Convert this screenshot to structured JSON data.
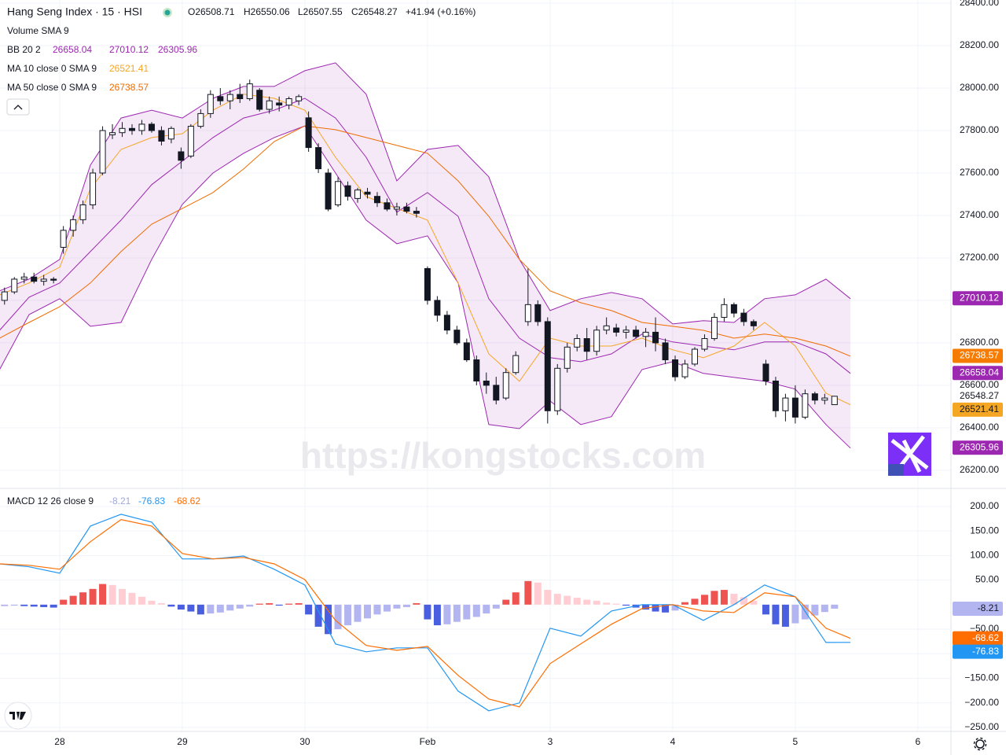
{
  "watermark": "https://kongstocks.com",
  "chart_data": [
    {
      "type": "candlestick",
      "title": "Hang Seng Index · 15 · HSI",
      "quote": [
        "O26508.71",
        "H26550.06",
        "L26507.55",
        "C26548.27",
        "+41.94 (+0.16%)"
      ],
      "legend": [
        {
          "name": "Volume SMA 9"
        },
        {
          "name": "BB 20 2",
          "values": [
            26658.04,
            27010.12,
            26305.96
          ],
          "colors": [
            "#9c27b0",
            "#9c27b0",
            "#9c27b0"
          ]
        },
        {
          "name": "MA 10 close 0 SMA 9",
          "values": [
            26521.41
          ],
          "colors": [
            "#f5a623"
          ]
        },
        {
          "name": "MA 50 close 0 SMA 9",
          "values": [
            26738.57
          ],
          "colors": [
            "#ef6c00"
          ]
        }
      ],
      "xlim": [
        -0.487,
        7.27
      ],
      "xticks": [
        {
          "value": 0,
          "label": "28"
        },
        {
          "value": 1,
          "label": "29"
        },
        {
          "value": 2,
          "label": "30"
        },
        {
          "value": 3,
          "label": "Feb"
        },
        {
          "value": 4,
          "label": "3"
        },
        {
          "value": 5,
          "label": "4"
        },
        {
          "value": 6,
          "label": "5"
        },
        {
          "value": 7,
          "label": "6"
        }
      ],
      "ylim": [
        26118,
        28415
      ],
      "yticks": [
        {
          "value": 26200,
          "label": "26200.00"
        },
        {
          "value": 26400,
          "label": "26400.00"
        },
        {
          "value": 26600,
          "label": "26600.00"
        },
        {
          "value": 26800,
          "label": "26800.00"
        },
        {
          "value": 27000,
          "label": "27000.00"
        },
        {
          "value": 27200,
          "label": "27200.00"
        },
        {
          "value": 27400,
          "label": "27400.00"
        },
        {
          "value": 27600,
          "label": "27600.00"
        },
        {
          "value": 27800,
          "label": "27800.00"
        },
        {
          "value": 28000,
          "label": "28000.00"
        },
        {
          "value": 28200,
          "label": "28200.00"
        },
        {
          "value": 28400,
          "label": "28400.00"
        }
      ],
      "grid": true,
      "up_color": "#ffffff",
      "down_color": "#131722",
      "edge_color": "#131722",
      "x": [
        -0.45,
        -0.37,
        -0.29,
        -0.21,
        -0.13,
        -0.05,
        0.03,
        0.11,
        0.19,
        0.27,
        0.35,
        0.43,
        0.51,
        0.59,
        0.67,
        0.75,
        0.83,
        0.91,
        0.99,
        1.07,
        1.15,
        1.23,
        1.31,
        1.39,
        1.47,
        1.55,
        1.63,
        1.71,
        1.79,
        1.87,
        1.95,
        2.03,
        2.11,
        2.19,
        2.27,
        2.35,
        2.43,
        2.51,
        2.59,
        2.67,
        2.75,
        2.83,
        2.91,
        3.0,
        3.08,
        3.16,
        3.24,
        3.32,
        3.4,
        3.48,
        3.56,
        3.64,
        3.72,
        3.82,
        3.9,
        3.98,
        4.06,
        4.14,
        4.22,
        4.3,
        4.38,
        4.46,
        4.54,
        4.62,
        4.7,
        4.78,
        4.86,
        4.94,
        5.02,
        5.1,
        5.18,
        5.26,
        5.34,
        5.42,
        5.5,
        5.58,
        5.66,
        5.76,
        5.84,
        5.92,
        6.0,
        6.08,
        6.16,
        6.24,
        6.32
      ],
      "open": [
        27000,
        27040,
        27100,
        27110,
        27090,
        27100,
        27250,
        27330,
        27380,
        27450,
        27600,
        27780,
        27790,
        27810,
        27800,
        27830,
        27800,
        27760,
        27700,
        27680,
        27820,
        27880,
        27960,
        27940,
        27970,
        27950,
        27990,
        27900,
        27930,
        27920,
        27940,
        27860,
        27720,
        27600,
        27450,
        27540,
        27480,
        27510,
        27490,
        27460,
        27430,
        27440,
        27420,
        27150,
        27000,
        26930,
        26860,
        26800,
        26720,
        26620,
        26600,
        26540,
        26660,
        26900,
        26980,
        26900,
        26480,
        26680,
        26780,
        26820,
        26760,
        26860,
        26870,
        26850,
        26860,
        26830,
        26850,
        26800,
        26720,
        26640,
        26700,
        26770,
        26820,
        26920,
        26980,
        26940,
        26900,
        26700,
        26620,
        26480,
        26540,
        26450,
        26560,
        26530,
        26508.71
      ],
      "high": [
        27060,
        27110,
        27130,
        27130,
        27120,
        27110,
        27350,
        27400,
        27470,
        27620,
        27820,
        27830,
        27840,
        27830,
        27850,
        27840,
        27820,
        27820,
        27720,
        27830,
        27900,
        27990,
        28000,
        27990,
        28020,
        28040,
        28000,
        27960,
        27960,
        27960,
        27970,
        27890,
        27740,
        27620,
        27580,
        27560,
        27530,
        27530,
        27510,
        27480,
        27460,
        27460,
        27440,
        27160,
        27020,
        26950,
        26880,
        26820,
        26740,
        26660,
        26640,
        26680,
        26760,
        27150,
        27000,
        26920,
        26700,
        26800,
        26840,
        26870,
        26880,
        26920,
        26890,
        26880,
        26880,
        26870,
        26920,
        26820,
        26740,
        26720,
        26780,
        26840,
        26940,
        27010,
        26990,
        26960,
        26910,
        26720,
        26640,
        26560,
        26600,
        26580,
        26570,
        26560,
        26550.06
      ],
      "low": [
        26980,
        27030,
        27080,
        27080,
        27070,
        27080,
        27220,
        27300,
        27360,
        27430,
        27590,
        27760,
        27770,
        27780,
        27780,
        27790,
        27730,
        27740,
        27620,
        27670,
        27810,
        27860,
        27920,
        27900,
        27930,
        27940,
        27890,
        27880,
        27890,
        27900,
        27920,
        27700,
        27600,
        27420,
        27440,
        27470,
        27460,
        27480,
        27440,
        27420,
        27400,
        27410,
        27390,
        26980,
        26900,
        26840,
        26790,
        26710,
        26600,
        26560,
        26510,
        26530,
        26650,
        26880,
        26880,
        26420,
        26460,
        26660,
        26760,
        26720,
        26740,
        26840,
        26830,
        26820,
        26820,
        26780,
        26760,
        26700,
        26620,
        26630,
        26690,
        26760,
        26810,
        26900,
        26920,
        26880,
        26860,
        26600,
        26450,
        26430,
        26420,
        26440,
        26510,
        26510,
        26507.55
      ],
      "close": [
        27040,
        27100,
        27110,
        27090,
        27100,
        27095,
        27330,
        27380,
        27450,
        27600,
        27800,
        27790,
        27810,
        27800,
        27830,
        27800,
        27750,
        27810,
        27660,
        27820,
        27880,
        27970,
        27940,
        27970,
        27950,
        28020,
        27900,
        27940,
        27920,
        27950,
        27960,
        27720,
        27620,
        27430,
        27560,
        27490,
        27520,
        27500,
        27460,
        27430,
        27440,
        27420,
        27410,
        27000,
        26930,
        26860,
        26800,
        26720,
        26620,
        26600,
        26530,
        26660,
        26740,
        26980,
        26900,
        26480,
        26680,
        26780,
        26820,
        26760,
        26860,
        26880,
        26850,
        26860,
        26830,
        26850,
        26800,
        26720,
        26640,
        26700,
        26770,
        26820,
        26920,
        26980,
        26940,
        26900,
        26880,
        26620,
        26480,
        26540,
        26450,
        26560,
        26530,
        26540,
        26548.27
      ],
      "line_x": [
        -0.49,
        -0.25,
        0,
        0.25,
        0.5,
        0.75,
        1,
        1.25,
        1.5,
        1.75,
        2,
        2.25,
        2.5,
        2.75,
        3,
        3.25,
        3.5,
        3.75,
        4,
        4.25,
        4.5,
        4.75,
        5,
        5.25,
        5.5,
        5.75,
        6,
        6.25,
        6.45
      ],
      "band_color": "#9c27b0",
      "lines": [
        {
          "color": "#9c27b0",
          "values": [
            27045,
            27100,
            27193,
            27637,
            27859,
            27896,
            27859,
            27952,
            28008,
            28008,
            28082,
            28119,
            27971,
            27563,
            27711,
            27730,
            27582,
            27193,
            26952,
            27008,
            27037,
            27008,
            26889,
            26904,
            26896,
            27008,
            27026,
            27100,
            27008
          ]
        },
        {
          "color": "#9c27b0",
          "values": [
            26859,
            27015,
            27082,
            27230,
            27378,
            27545,
            27656,
            27767,
            27859,
            27896,
            27952,
            27859,
            27674,
            27415,
            27508,
            27396,
            27008,
            26822,
            26730,
            26711,
            26748,
            26841,
            26804,
            26785,
            26767,
            26804,
            26804,
            26748,
            26656
          ]
        },
        {
          "color": "#9c27b0",
          "values": [
            26674,
            26933,
            27008,
            26878,
            26896,
            27193,
            27452,
            27600,
            27693,
            27767,
            27822,
            27600,
            27378,
            27267,
            27304,
            27082,
            26415,
            26396,
            26526,
            26415,
            26452,
            26674,
            26711,
            26656,
            26637,
            26619,
            26582,
            26415,
            26304
          ]
        },
        {
          "color": "#f5a623",
          "values": [
            27026,
            27082,
            27156,
            27526,
            27711,
            27767,
            27785,
            27896,
            27971,
            27952,
            27896,
            27674,
            27489,
            27433,
            27378,
            27082,
            26748,
            26619,
            26822,
            26785,
            26785,
            26822,
            26767,
            26730,
            26785,
            26896,
            26785,
            26563,
            26508
          ]
        },
        {
          "color": "#ef6c00",
          "values": [
            26822,
            26896,
            26970,
            27082,
            27230,
            27359,
            27433,
            27508,
            27619,
            27748,
            27822,
            27804,
            27767,
            27730,
            27693,
            27563,
            27396,
            27193,
            27045,
            26989,
            26952,
            26896,
            26878,
            26859,
            26822,
            26841,
            26822,
            26785,
            26737
          ]
        }
      ],
      "price_tags": [
        {
          "value": 27010.12,
          "color": "#9c27b0",
          "text_color": "#ffffff"
        },
        {
          "value": 26738.57,
          "color": "#f57c00",
          "text_color": "#ffffff"
        },
        {
          "value": 26658.04,
          "color": "#9c27b0",
          "text_color": "#ffffff"
        },
        {
          "value": 26548.27,
          "color": "#ffffff",
          "text_color": "#131722"
        },
        {
          "value": 26521.41,
          "color": "#f5a623",
          "text_color": "#131722"
        },
        {
          "value": 26305.96,
          "color": "#9c27b0",
          "text_color": "#ffffff"
        }
      ]
    },
    {
      "type": "macd",
      "name": "MACD 12 26 close 9",
      "legend_values": [
        -8.21,
        -76.83,
        -68.62
      ],
      "legend_colors": [
        "#9fa8da",
        "#2196f3",
        "#ff6d00"
      ],
      "ylim": [
        -258,
        235
      ],
      "yticks": [
        {
          "value": 200,
          "label": "200.00"
        },
        {
          "value": 150,
          "label": "150.00"
        },
        {
          "value": 100,
          "label": "100.00"
        },
        {
          "value": 50,
          "label": "50.00"
        },
        {
          "value": -50,
          "label": "−50.00"
        },
        {
          "value": -100,
          "label": "−100.00"
        },
        {
          "value": -150,
          "label": "−150.00"
        },
        {
          "value": -200,
          "label": "−200.00"
        },
        {
          "value": -250,
          "label": "−250.00"
        }
      ],
      "hist_colors": {
        "pos_rising": "#ef5350",
        "pos_falling": "#ffcdd2",
        "neg_falling": "#4a5fe0",
        "neg_rising": "#b2b5f0"
      },
      "histogram": [
        -3,
        -2,
        -3,
        -4,
        -5,
        -6,
        10,
        18,
        25,
        32,
        42,
        40,
        32,
        24,
        16,
        8,
        3,
        -4,
        -10,
        -14,
        -20,
        -18,
        -16,
        -12,
        -8,
        -4,
        2,
        3,
        -2,
        2,
        3,
        -20,
        -45,
        -60,
        -50,
        -42,
        -35,
        -28,
        -20,
        -14,
        -8,
        -5,
        3,
        -30,
        -42,
        -40,
        -35,
        -30,
        -25,
        -18,
        -8,
        10,
        25,
        48,
        45,
        30,
        22,
        18,
        14,
        10,
        8,
        4,
        2,
        -2,
        -6,
        -10,
        -14,
        -16,
        -12,
        5,
        12,
        20,
        28,
        30,
        22,
        15,
        8,
        -20,
        -40,
        -45,
        -38,
        -30,
        -22,
        -15,
        -8.21
      ],
      "lines": [
        {
          "color": "#2196f3",
          "values": [
            83,
            77,
            64,
            160,
            184,
            168,
            93,
            93,
            99,
            72,
            40,
            -80,
            -96,
            -88,
            -88,
            -176,
            -216,
            -200,
            -48,
            -64,
            -13,
            0,
            0,
            -32,
            0,
            40,
            16,
            -77,
            -76.83
          ]
        },
        {
          "color": "#ff6d00",
          "values": [
            83,
            80,
            72,
            128,
            173,
            160,
            104,
            93,
            96,
            83,
            51,
            -32,
            -83,
            -93,
            -85,
            -144,
            -192,
            -208,
            -120,
            -80,
            -40,
            -8,
            0,
            -13,
            -16,
            24,
            16,
            -48,
            -68.62
          ]
        }
      ],
      "tags": [
        {
          "value": -8.21,
          "color": "#b2b5f0",
          "text_color": "#131722"
        },
        {
          "value": -68.62,
          "color": "#ff6d00",
          "text_color": "#ffffff"
        },
        {
          "value": -76.83,
          "color": "#2196f3",
          "text_color": "#ffffff"
        }
      ]
    }
  ]
}
